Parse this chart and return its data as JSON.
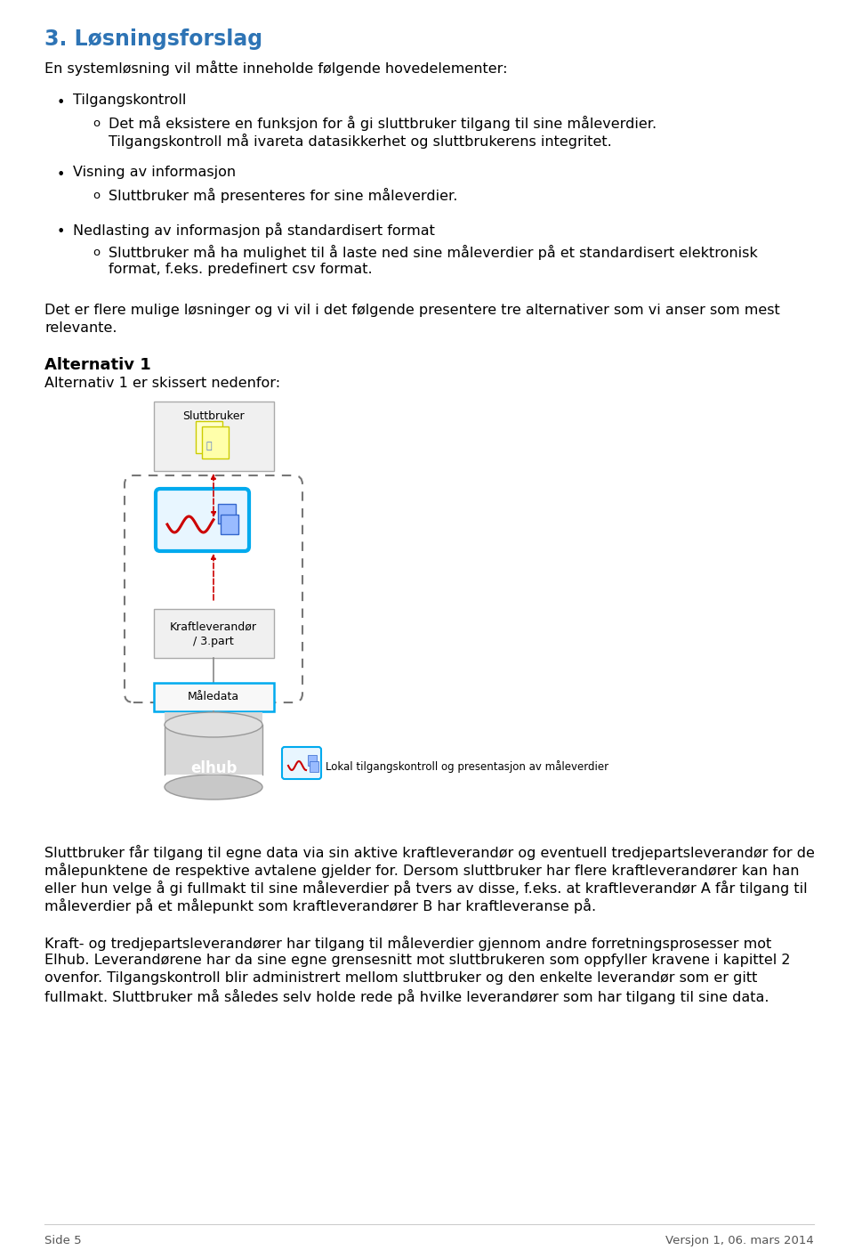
{
  "title": "3. Løsningsforslag",
  "title_color": "#2E74B5",
  "background_color": "#ffffff",
  "body_text_color": "#000000",
  "intro_text": "En systemløsning vil måtte inneholde følgende hovedelementer:",
  "bullet1": "Tilgangskontroll",
  "sub1a_line1": "Det må eksistere en funksjon for å gi sluttbruker tilgang til sine måleverdier.",
  "sub1a_line2": "Tilgangskontroll må ivareta datasikkerhet og sluttbrukerens integritet.",
  "bullet2": "Visning av informasjon",
  "sub2a": "Sluttbruker må presenteres for sine måleverdier.",
  "bullet3": "Nedlasting av informasjon på standardisert format",
  "sub3a_line1": "Sluttbruker må ha mulighet til å laste ned sine måleverdier på et standardisert elektronisk",
  "sub3a_line2": "format, f.eks. predefinert csv format.",
  "para1_line1": "Det er flere mulige løsninger og vi vil i det følgende presentere tre alternativer som vi anser som mest",
  "para1_line2": "relevante.",
  "alt1_heading": "Alternativ 1",
  "alt1_subheading": "Alternativ 1 er skissert nedenfor:",
  "para2_line1": "Sluttbruker får tilgang til egne data via sin aktive kraftleverandør og eventuell tredjepartsleverandør for de",
  "para2_line2": "målepunktene de respektive avtalene gjelder for. Dersom sluttbruker har flere kraftleverandører kan han",
  "para2_line3": "eller hun velge å gi fullmakt til sine måleverdier på tvers av disse, f.eks. at kraftleverandør A får tilgang til",
  "para2_line4": "måleverdier på et målepunkt som kraftleverandører B har kraftleveranse på.",
  "para3_line1": "Kraft- og tredjepartsleverandører har tilgang til måleverdier gjennom andre forretningsprosesser mot",
  "para3_line2": "Elhub. Leverandørene har da sine egne grensesnitt mot sluttbrukeren som oppfyller kravene i kapittel 2",
  "para3_line3": "ovenfor. Tilgangskontroll blir administrert mellom sluttbruker og den enkelte leverandør som er gitt",
  "para3_line4": "fullmakt. Sluttbruker må således selv holde rede på hvilke leverandører som har tilgang til sine data.",
  "footer_left": "Side 5",
  "footer_right": "Versjon 1, 06. mars 2014",
  "title_fontsize": 17,
  "body_fontsize": 11.5,
  "heading_fontsize": 13
}
